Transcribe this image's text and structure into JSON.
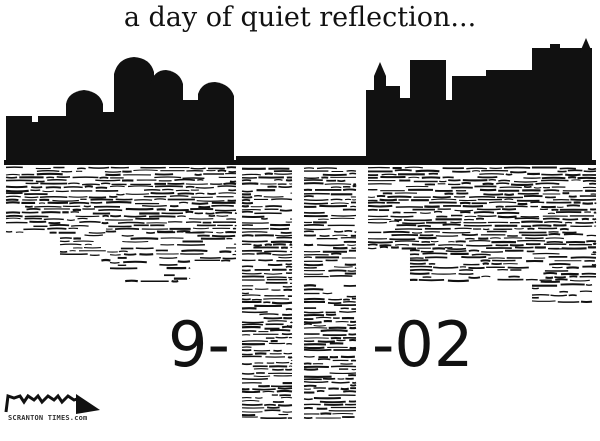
{
  "caption": "a day of quiet reflection...",
  "date": {
    "left": "9-",
    "right": "-02"
  },
  "signature": {
    "artist": "DRAUGHON",
    "paper": "SCRANTON TIMES.com"
  },
  "colors": {
    "ink": "#111111",
    "paper": "#ffffff"
  }
}
